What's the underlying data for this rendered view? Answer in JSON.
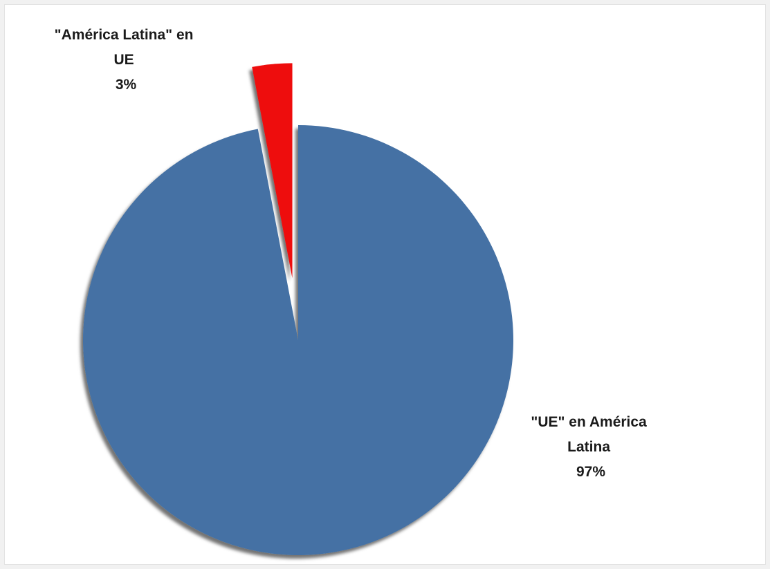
{
  "chart_data": {
    "type": "pie",
    "title": "",
    "slices": [
      {
        "label_lines": [
          "\"América Latina\" en",
          "UE"
        ],
        "label": "\"América Latina\" en UE",
        "value": 3,
        "display": "3%",
        "color": "#ee1111",
        "exploded": true
      },
      {
        "label_lines": [
          "\"UE\" en América",
          "Latina"
        ],
        "label": "\"UE\" en América Latina",
        "value": 97,
        "display": "97%",
        "color": "#4471a4",
        "exploded": false
      }
    ],
    "start_angle_deg": 0,
    "direction": "counterclockwise",
    "legend": "none",
    "style": "3d-shadow"
  }
}
